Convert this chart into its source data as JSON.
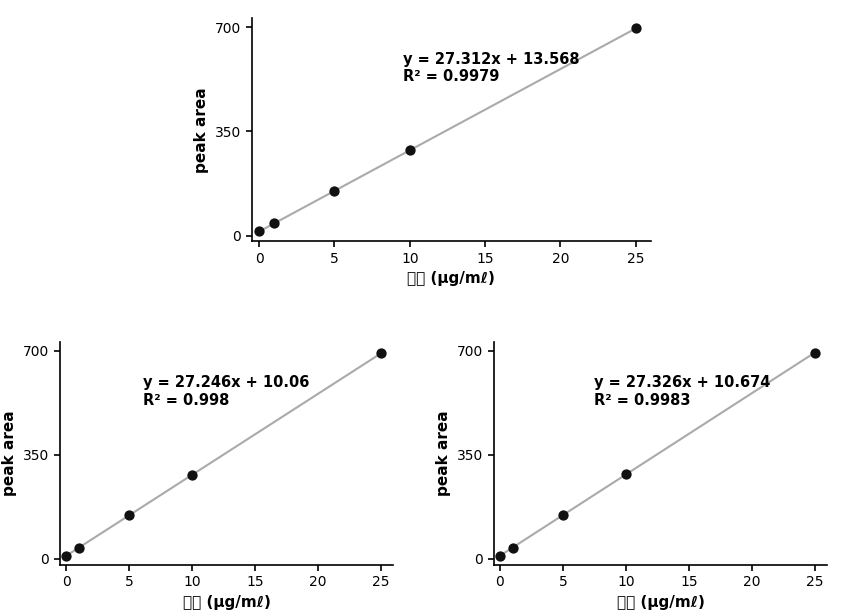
{
  "plots": [
    {
      "x_data": [
        0,
        1,
        5,
        10,
        25
      ],
      "slope": 27.312,
      "intercept": 13.568,
      "equation": "y = 27.312x + 13.568",
      "r2_label": "R² = 0.9979"
    },
    {
      "x_data": [
        0,
        1,
        5,
        10,
        25
      ],
      "slope": 27.246,
      "intercept": 10.06,
      "equation": "y = 27.246x + 10.06",
      "r2_label": "R² = 0.998"
    },
    {
      "x_data": [
        0,
        1,
        5,
        10,
        25
      ],
      "slope": 27.326,
      "intercept": 10.674,
      "equation": "y = 27.326x + 10.674",
      "r2_label": "R² = 0.9983"
    }
  ],
  "xlabel": "농도 (μg/mℓ)",
  "ylabel": "peak area",
  "xlim": [
    -0.5,
    26
  ],
  "ylim": [
    -20,
    730
  ],
  "xticks": [
    0,
    5,
    10,
    15,
    20,
    25
  ],
  "yticks": [
    0,
    350,
    700
  ],
  "line_color": "#aaaaaa",
  "dot_color": "#111111",
  "dot_size": 55,
  "annotation_fontsize": 10.5,
  "axis_label_fontsize": 11,
  "tick_fontsize": 10,
  "background_color": "#ffffff"
}
